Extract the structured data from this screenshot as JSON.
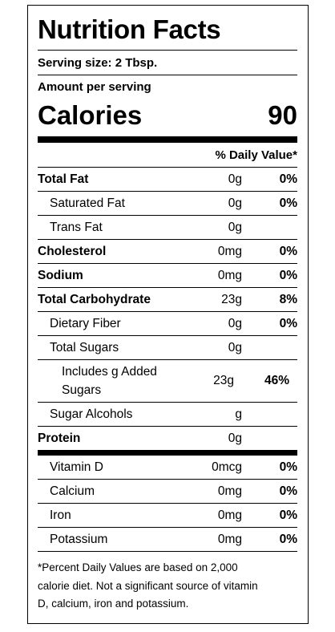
{
  "title": "Nutrition Facts",
  "serving_size": "Serving size: 2 Tbsp.",
  "amount_per_serving": "Amount per serving",
  "calories": {
    "label": "Calories",
    "value": 90
  },
  "daily_value_header": "% Daily Value*",
  "nutrients": [
    {
      "name": "Total Fat",
      "amount": "0g",
      "daily_value": "0%",
      "sub": [
        {
          "name": "Saturated Fat",
          "amount": "0g",
          "daily_value": "0%"
        },
        {
          "name": "Trans Fat",
          "amount": "0g"
        }
      ]
    },
    {
      "name": "Cholesterol",
      "amount": "0mg",
      "daily_value": "0%"
    },
    {
      "name": "Sodium",
      "amount": "0mg",
      "daily_value": "0%"
    },
    {
      "name": "Total Carbohydrate",
      "amount": "23g",
      "daily_value": "8%",
      "sub": [
        {
          "name": "Dietary Fiber",
          "amount": "0g",
          "daily_value": "0%"
        },
        {
          "name": "Total Sugars",
          "amount": "0g",
          "sub": [
            {
              "name": "Includes g Added Sugars",
              "amount": "23g",
              "daily_value": "46%"
            }
          ]
        },
        {
          "name": "Sugar Alcohols",
          "amount": "g"
        }
      ]
    },
    {
      "name": "Protein",
      "amount": "0g"
    }
  ],
  "vitamins": [
    {
      "name": "Vitamin D",
      "amount": "0mcg",
      "daily_value": "0%"
    },
    {
      "name": "Calcium",
      "amount": "0mg",
      "daily_value": "0%"
    },
    {
      "name": "Iron",
      "amount": "0mg",
      "daily_value": "0%"
    },
    {
      "name": "Potassium",
      "amount": "0mg",
      "daily_value": "0%"
    }
  ],
  "footnote": "*Percent Daily Values are based on 2,000 calorie diet. Not a significant source of vitamin D, calcium, iron and potassium."
}
